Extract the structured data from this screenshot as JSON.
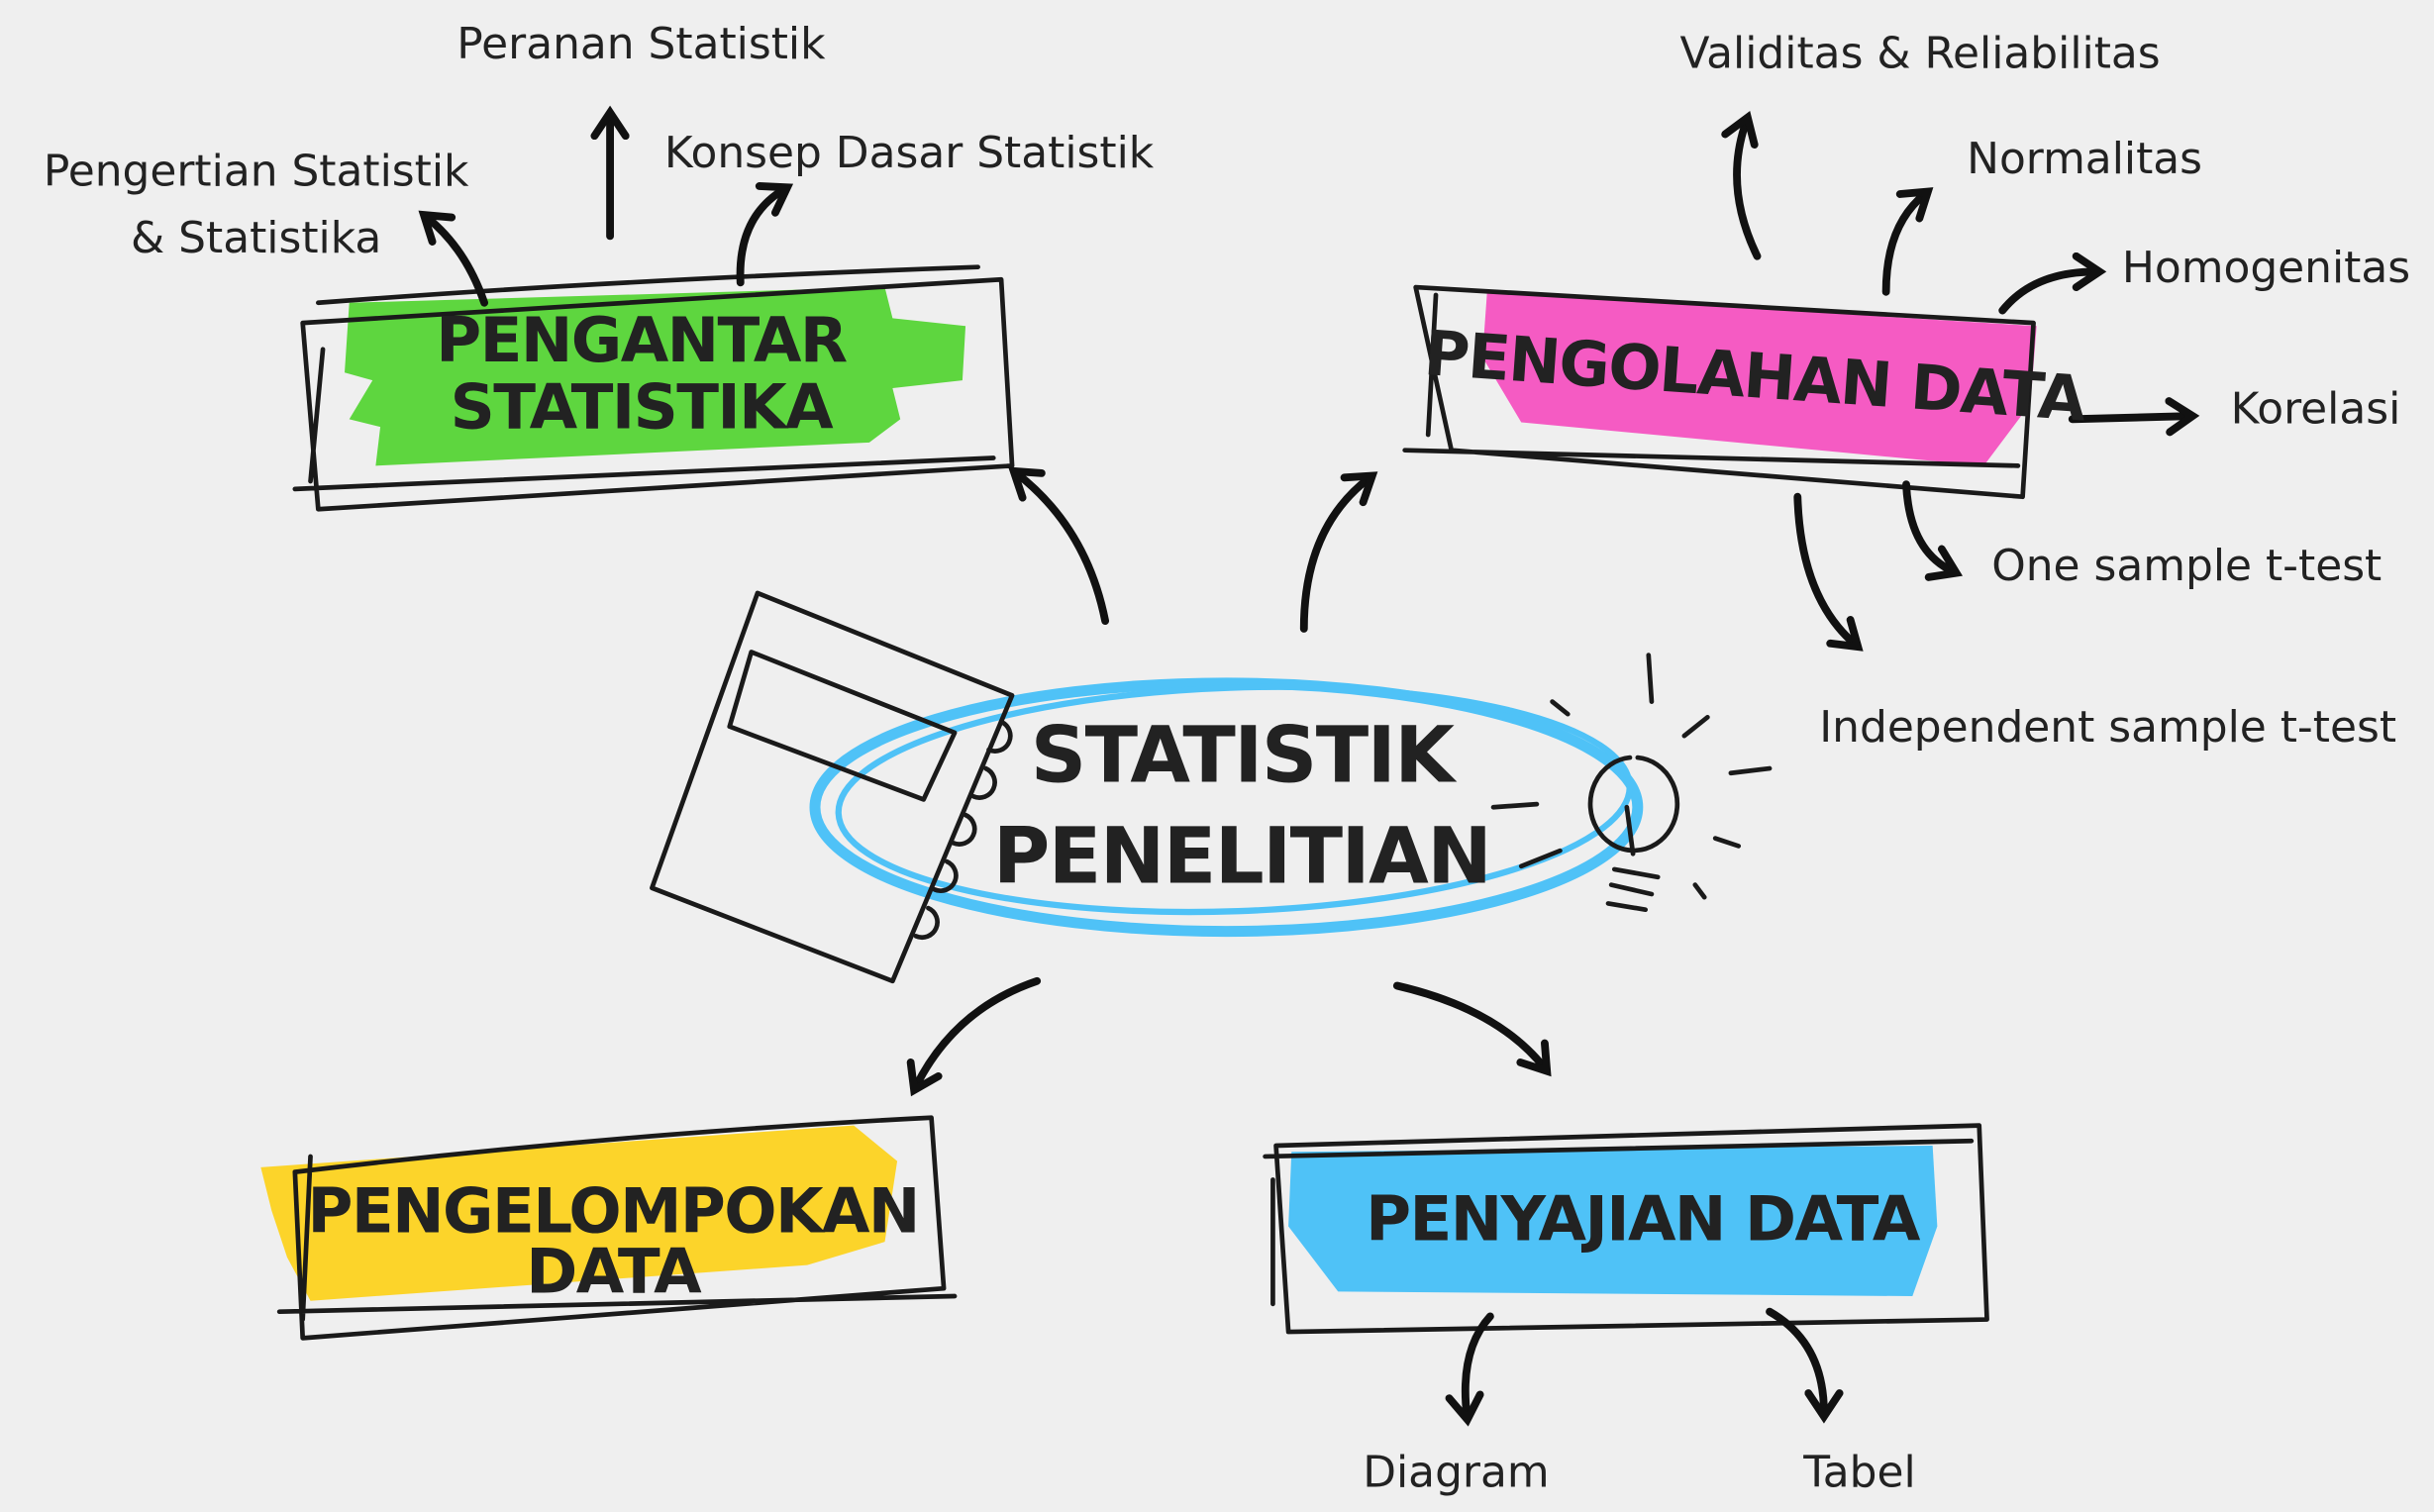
{
  "center": {
    "lines": [
      "STATISTIK",
      "PENELITIAN"
    ]
  },
  "nodes": [
    {
      "lines": [
        "PENGANTAR",
        "STATISTIKA"
      ],
      "children": [
        {
          "lines": [
            "Pengertian Statistik",
            "& Statistika"
          ]
        },
        {
          "lines": [
            "Peranan Statistik"
          ]
        },
        {
          "lines": [
            "Konsep Dasar Statistik"
          ]
        }
      ]
    },
    {
      "lines": [
        "PENGOLAHAN DATA"
      ],
      "children": [
        {
          "lines": [
            "Validitas & Reliabilitas"
          ]
        },
        {
          "lines": [
            "Normalitas"
          ]
        },
        {
          "lines": [
            "Homogenitas"
          ]
        },
        {
          "lines": [
            "Korelasi"
          ]
        },
        {
          "lines": [
            "One sample t-test"
          ]
        },
        {
          "lines": [
            "Independent sample t-test"
          ]
        }
      ]
    },
    {
      "lines": [
        "PENGELOMPOKAN",
        "DATA"
      ],
      "children": []
    },
    {
      "lines": [
        "PENYAJIAN DATA"
      ],
      "children": [
        {
          "lines": [
            "Diagram"
          ]
        },
        {
          "lines": [
            "Tabel"
          ]
        }
      ]
    }
  ]
}
